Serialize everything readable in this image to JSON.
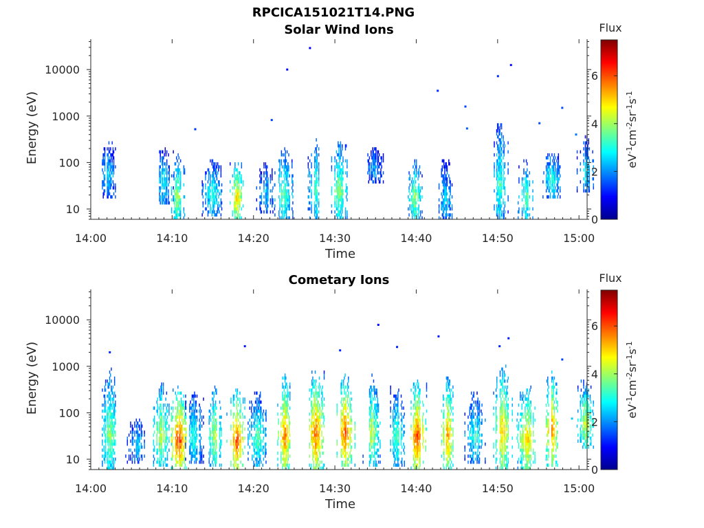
{
  "figure_title": "RPCICA151021T14.PNG",
  "chart_data": [
    {
      "type": "heatmap",
      "title": "Solar Wind Ions",
      "xlabel": "Time",
      "ylabel": "Energy (eV)",
      "x_ticks": [
        "14:00",
        "14:10",
        "14:20",
        "14:30",
        "14:40",
        "14:50",
        "15:00"
      ],
      "xlim_minutes": [
        0,
        61
      ],
      "y_scale": "log",
      "y_ticks": [
        {
          "value": 10,
          "label": "10"
        },
        {
          "value": 100,
          "label": "100"
        },
        {
          "value": 1000,
          "label": "1000"
        },
        {
          "value": 10000,
          "label": "10000"
        }
      ],
      "ylim": [
        6,
        45000
      ],
      "colorbar": {
        "title": "Flux",
        "unit": "eV-1cm-2sr-1s-1",
        "range": [
          0,
          7.5
        ],
        "ticks": [
          "0",
          "2",
          "4",
          "6"
        ],
        "colormap": "jet"
      },
      "bursts": [
        {
          "t": 2.1,
          "emin": 20,
          "emax": 300,
          "peak": 2.6
        },
        {
          "t": 8.8,
          "emin": 15,
          "emax": 220,
          "peak": 2.8
        },
        {
          "t": 10.6,
          "emin": 6,
          "emax": 150,
          "peak": 4.2
        },
        {
          "t": 14.9,
          "emin": 8,
          "emax": 120,
          "peak": 3.2
        },
        {
          "t": 17.9,
          "emin": 6,
          "emax": 110,
          "peak": 5.2
        },
        {
          "t": 21.4,
          "emin": 10,
          "emax": 100,
          "peak": 2.4
        },
        {
          "t": 23.6,
          "emin": 6,
          "emax": 230,
          "peak": 3.6
        },
        {
          "t": 27.6,
          "emin": 6,
          "emax": 380,
          "peak": 3.4
        },
        {
          "t": 30.5,
          "emin": 6,
          "emax": 330,
          "peak": 4.0
        },
        {
          "t": 34.8,
          "emin": 40,
          "emax": 220,
          "peak": 2.2
        },
        {
          "t": 39.8,
          "emin": 6,
          "emax": 120,
          "peak": 4.0
        },
        {
          "t": 43.5,
          "emin": 6,
          "emax": 120,
          "peak": 2.6
        },
        {
          "t": 50.3,
          "emin": 6,
          "emax": 900,
          "peak": 3.4
        },
        {
          "t": 53.5,
          "emin": 6,
          "emax": 120,
          "peak": 3.6
        },
        {
          "t": 56.6,
          "emin": 20,
          "emax": 180,
          "peak": 3.2
        },
        {
          "t": 60.8,
          "emin": 25,
          "emax": 380,
          "peak": 2.8
        }
      ],
      "isolated_points": [
        {
          "t": 12.8,
          "e": 520,
          "v": 1.3
        },
        {
          "t": 22.2,
          "e": 820,
          "v": 1.4
        },
        {
          "t": 24.1,
          "e": 10000,
          "v": 1.0
        },
        {
          "t": 26.9,
          "e": 29000,
          "v": 0.9
        },
        {
          "t": 42.6,
          "e": 3500,
          "v": 1.2
        },
        {
          "t": 46.0,
          "e": 1600,
          "v": 1.4
        },
        {
          "t": 46.2,
          "e": 540,
          "v": 1.6
        },
        {
          "t": 50.0,
          "e": 7200,
          "v": 1.2
        },
        {
          "t": 51.6,
          "e": 12500,
          "v": 1.0
        },
        {
          "t": 55.1,
          "e": 700,
          "v": 1.5
        },
        {
          "t": 57.9,
          "e": 1500,
          "v": 1.5
        },
        {
          "t": 59.6,
          "e": 400,
          "v": 1.8
        }
      ]
    },
    {
      "type": "heatmap",
      "title": "Cometary Ions",
      "xlabel": "Time",
      "ylabel": "Energy (eV)",
      "x_ticks": [
        "14:00",
        "14:10",
        "14:20",
        "14:30",
        "14:40",
        "14:50",
        "15:00"
      ],
      "xlim_minutes": [
        0,
        61
      ],
      "y_scale": "log",
      "y_ticks": [
        {
          "value": 10,
          "label": "10"
        },
        {
          "value": 100,
          "label": "100"
        },
        {
          "value": 1000,
          "label": "1000"
        },
        {
          "value": 10000,
          "label": "10000"
        }
      ],
      "ylim": [
        6,
        45000
      ],
      "colorbar": {
        "title": "Flux",
        "unit": "eV-1cm-2sr-1s-1",
        "range": [
          0,
          7.5
        ],
        "ticks": [
          "0",
          "2",
          "4",
          "6"
        ],
        "colormap": "jet"
      },
      "bursts": [
        {
          "t": 2.3,
          "emin": 6,
          "emax": 900,
          "peak": 4.0
        },
        {
          "t": 5.6,
          "emin": 10,
          "emax": 80,
          "peak": 2.6
        },
        {
          "t": 8.6,
          "emin": 8,
          "emax": 500,
          "peak": 4.4
        },
        {
          "t": 10.8,
          "emin": 6,
          "emax": 400,
          "peak": 6.4
        },
        {
          "t": 12.6,
          "emin": 10,
          "emax": 300,
          "peak": 3.2
        },
        {
          "t": 15.2,
          "emin": 8,
          "emax": 420,
          "peak": 4.4
        },
        {
          "t": 17.9,
          "emin": 6,
          "emax": 350,
          "peak": 6.2
        },
        {
          "t": 20.5,
          "emin": 8,
          "emax": 300,
          "peak": 3.6
        },
        {
          "t": 23.8,
          "emin": 6,
          "emax": 700,
          "peak": 5.8
        },
        {
          "t": 27.6,
          "emin": 6,
          "emax": 900,
          "peak": 6.0
        },
        {
          "t": 31.2,
          "emin": 8,
          "emax": 650,
          "peak": 6.2
        },
        {
          "t": 34.5,
          "emin": 8,
          "emax": 700,
          "peak": 4.4
        },
        {
          "t": 37.6,
          "emin": 8,
          "emax": 380,
          "peak": 3.6
        },
        {
          "t": 40.1,
          "emin": 6,
          "emax": 550,
          "peak": 6.3
        },
        {
          "t": 43.8,
          "emin": 6,
          "emax": 650,
          "peak": 5.6
        },
        {
          "t": 47.2,
          "emin": 10,
          "emax": 300,
          "peak": 3.2
        },
        {
          "t": 50.6,
          "emin": 6,
          "emax": 1200,
          "peak": 5.4
        },
        {
          "t": 53.6,
          "emin": 6,
          "emax": 420,
          "peak": 5.2
        },
        {
          "t": 56.6,
          "emin": 8,
          "emax": 800,
          "peak": 5.8
        },
        {
          "t": 60.8,
          "emin": 20,
          "emax": 500,
          "peak": 4.6
        }
      ],
      "isolated_points": [
        {
          "t": 2.3,
          "e": 2000,
          "v": 1.2
        },
        {
          "t": 18.9,
          "e": 2700,
          "v": 1.1
        },
        {
          "t": 30.6,
          "e": 2200,
          "v": 1.2
        },
        {
          "t": 35.3,
          "e": 7800,
          "v": 1.0
        },
        {
          "t": 37.6,
          "e": 2600,
          "v": 1.2
        },
        {
          "t": 42.7,
          "e": 4400,
          "v": 1.1
        },
        {
          "t": 50.2,
          "e": 2700,
          "v": 1.2
        },
        {
          "t": 51.3,
          "e": 4000,
          "v": 1.1
        },
        {
          "t": 57.9,
          "e": 1400,
          "v": 1.4
        },
        {
          "t": 59.1,
          "e": 75,
          "v": 2.4
        }
      ]
    }
  ]
}
